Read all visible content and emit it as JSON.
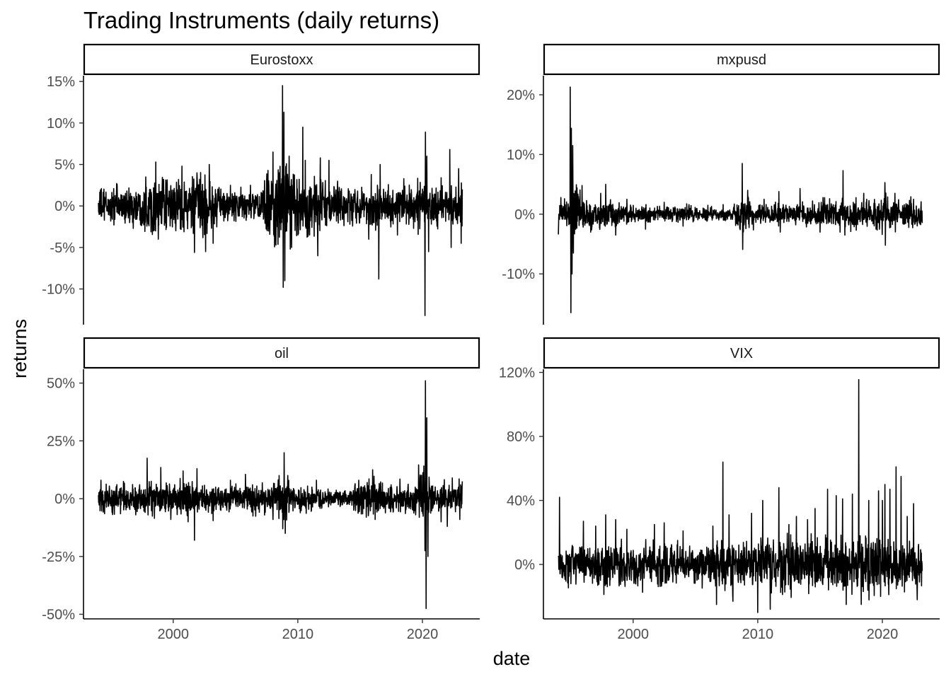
{
  "chart_data": {
    "type": "line",
    "title": "Trading Instruments (daily returns)",
    "xlabel": "date",
    "ylabel": "returns",
    "grid": false,
    "legend": "none",
    "x_range": [
      1992.8,
      2024.6
    ],
    "x_ticks": [
      2000,
      2010,
      2020
    ],
    "x_tick_labels": [
      "2000",
      "2010",
      "2020"
    ],
    "series_range": [
      1994.0,
      2023.2
    ],
    "panels": [
      {
        "name": "Eurostoxx",
        "strip_label": "Eurostoxx",
        "ylim": [
          -14.3,
          15.7
        ],
        "y_ticks": [
          -10,
          -5,
          0,
          5,
          10,
          15
        ],
        "y_tick_labels": [
          "-10%",
          "-5%",
          "0%",
          "5%",
          "10%",
          "15%"
        ],
        "show_x_axis": false,
        "base_volatility": [
          [
            1994,
            1.0
          ],
          [
            1997,
            1.1
          ],
          [
            1998,
            1.5
          ],
          [
            2000,
            1.4
          ],
          [
            2002,
            1.8
          ],
          [
            2003,
            1.5
          ],
          [
            2004,
            0.9
          ],
          [
            2007,
            1.0
          ],
          [
            2008,
            2.2
          ],
          [
            2009,
            2.6
          ],
          [
            2010,
            1.6
          ],
          [
            2011,
            2.1
          ],
          [
            2012,
            1.5
          ],
          [
            2014,
            1.0
          ],
          [
            2016,
            1.3
          ],
          [
            2018,
            1.0
          ],
          [
            2020,
            1.4
          ],
          [
            2021,
            1.1
          ],
          [
            2023,
            1.2
          ]
        ],
        "spikes": [
          [
            1995.5,
            2.6
          ],
          [
            1996.5,
            -2.0
          ],
          [
            1997.8,
            3.5
          ],
          [
            1998.6,
            5.3
          ],
          [
            1998.8,
            -4.0
          ],
          [
            2000.7,
            4.8
          ],
          [
            2001.7,
            -5.6
          ],
          [
            2001.9,
            4.0
          ],
          [
            2002.6,
            5.3
          ],
          [
            2002.9,
            5.0
          ],
          [
            2002.6,
            -5.5
          ],
          [
            2003.2,
            -4.5
          ],
          [
            2004.6,
            2.5
          ],
          [
            2006.2,
            2.5
          ],
          [
            2007.5,
            3.0
          ],
          [
            2008.0,
            6.5
          ],
          [
            2008.5,
            4.0
          ],
          [
            2008.78,
            14.5
          ],
          [
            2008.82,
            -9.8
          ],
          [
            2008.88,
            11.3
          ],
          [
            2008.95,
            -9.0
          ],
          [
            2009.3,
            6.0
          ],
          [
            2009.5,
            -5.0
          ],
          [
            2010.4,
            9.5
          ],
          [
            2010.6,
            5.5
          ],
          [
            2011.6,
            -6.0
          ],
          [
            2011.8,
            5.8
          ],
          [
            2012.5,
            5.5
          ],
          [
            2013.2,
            3.0
          ],
          [
            2015.7,
            -4.0
          ],
          [
            2015.9,
            3.8
          ],
          [
            2016.5,
            -8.8
          ],
          [
            2016.6,
            5.0
          ],
          [
            2018.0,
            -3.5
          ],
          [
            2018.5,
            3.3
          ],
          [
            2020.2,
            -13.2
          ],
          [
            2020.25,
            8.9
          ],
          [
            2020.35,
            6.0
          ],
          [
            2020.5,
            -5.5
          ],
          [
            2021.5,
            3.4
          ],
          [
            2022.2,
            6.8
          ],
          [
            2022.3,
            -5.0
          ],
          [
            2022.9,
            4.5
          ],
          [
            2023.1,
            -4.5
          ]
        ]
      },
      {
        "name": "mxpusd",
        "strip_label": "mxpusd",
        "ylim": [
          -18.5,
          23.2
        ],
        "y_ticks": [
          -10,
          0,
          10,
          20
        ],
        "y_tick_labels": [
          "-10%",
          "0%",
          "10%",
          "20%"
        ],
        "show_x_axis": false,
        "base_volatility": [
          [
            1994,
            0.8
          ],
          [
            1994.9,
            1.0
          ],
          [
            1995.0,
            4.0
          ],
          [
            1995.5,
            2.5
          ],
          [
            1996,
            1.2
          ],
          [
            1998,
            1.2
          ],
          [
            1999,
            0.8
          ],
          [
            2002,
            0.6
          ],
          [
            2008,
            0.6
          ],
          [
            2008.7,
            1.6
          ],
          [
            2009.5,
            1.2
          ],
          [
            2010,
            0.8
          ],
          [
            2014,
            0.9
          ],
          [
            2015,
            1.1
          ],
          [
            2017,
            1.2
          ],
          [
            2019,
            1.0
          ],
          [
            2020.2,
            1.6
          ],
          [
            2021,
            1.2
          ],
          [
            2023,
            1.1
          ]
        ],
        "spikes": [
          [
            1994.0,
            -3.4
          ],
          [
            1994.2,
            2.8
          ],
          [
            1994.5,
            2.6
          ],
          [
            1994.95,
            21.3
          ],
          [
            1995.0,
            -16.5
          ],
          [
            1995.05,
            14.4
          ],
          [
            1995.1,
            -10.0
          ],
          [
            1995.15,
            11.5
          ],
          [
            1995.2,
            -6.5
          ],
          [
            1995.9,
            4.8
          ],
          [
            1996.6,
            -3.0
          ],
          [
            1997.4,
            3.5
          ],
          [
            1997.8,
            5.0
          ],
          [
            1998.6,
            -3.5
          ],
          [
            1999.5,
            2.5
          ],
          [
            2001.0,
            -2.5
          ],
          [
            2002.5,
            2.0
          ],
          [
            2004.0,
            -2.0
          ],
          [
            2006.0,
            1.5
          ],
          [
            2008.75,
            8.5
          ],
          [
            2008.8,
            -5.9
          ],
          [
            2009.2,
            4.0
          ],
          [
            2010.5,
            2.5
          ],
          [
            2011.7,
            3.8
          ],
          [
            2011.8,
            -3.0
          ],
          [
            2013.4,
            4.3
          ],
          [
            2015.0,
            -3.0
          ],
          [
            2016.6,
            -3.0
          ],
          [
            2016.85,
            7.3
          ],
          [
            2017.0,
            -3.5
          ],
          [
            2018.5,
            3.5
          ],
          [
            2019.5,
            -2.5
          ],
          [
            2020.2,
            5.3
          ],
          [
            2020.25,
            -5.2
          ],
          [
            2021.0,
            3.5
          ],
          [
            2022.5,
            2.5
          ]
        ]
      },
      {
        "name": "oil",
        "strip_label": "oil",
        "ylim": [
          -52.0,
          56.0
        ],
        "y_ticks": [
          -50,
          -25,
          0,
          25,
          50
        ],
        "y_tick_labels": [
          "-50%",
          "-25%",
          "0%",
          "25%",
          "50%"
        ],
        "show_x_axis": true,
        "base_volatility": [
          [
            1994,
            2.8
          ],
          [
            1997,
            2.6
          ],
          [
            1998,
            3.4
          ],
          [
            2000,
            3.2
          ],
          [
            2002,
            3.0
          ],
          [
            2003,
            2.7
          ],
          [
            2006,
            2.5
          ],
          [
            2008.5,
            3.5
          ],
          [
            2009,
            4.0
          ],
          [
            2010,
            2.4
          ],
          [
            2012,
            2.0
          ],
          [
            2014,
            1.5
          ],
          [
            2014.8,
            3.5
          ],
          [
            2016,
            4.0
          ],
          [
            2017,
            3.0
          ],
          [
            2019,
            2.8
          ],
          [
            2020.2,
            6.0
          ],
          [
            2020.5,
            4.5
          ],
          [
            2021,
            3.0
          ],
          [
            2023,
            3.0
          ]
        ],
        "spikes": [
          [
            1994.2,
            8.0
          ],
          [
            1994.5,
            -6.5
          ],
          [
            1996.0,
            7.5
          ],
          [
            1997.0,
            -7.0
          ],
          [
            1997.9,
            17.5
          ],
          [
            1998.5,
            -8.5
          ],
          [
            1999.0,
            13.5
          ],
          [
            1999.8,
            -9.0
          ],
          [
            2000.8,
            12.0
          ],
          [
            2001.2,
            -10.0
          ],
          [
            2001.7,
            -18.0
          ],
          [
            2001.9,
            13.0
          ],
          [
            2003.2,
            -9.5
          ],
          [
            2004.6,
            8.0
          ],
          [
            2005.8,
            10.5
          ],
          [
            2006.4,
            -7.5
          ],
          [
            2008.0,
            -9.0
          ],
          [
            2008.5,
            10.0
          ],
          [
            2008.8,
            -13.0
          ],
          [
            2008.9,
            19.9
          ],
          [
            2009.0,
            -15.0
          ],
          [
            2009.2,
            10.0
          ],
          [
            2011.5,
            8.0
          ],
          [
            2014.9,
            8.0
          ],
          [
            2015.5,
            -8.0
          ],
          [
            2016.0,
            12.5
          ],
          [
            2016.2,
            -9.0
          ],
          [
            2018.2,
            8.5
          ],
          [
            2019.7,
            14.6
          ],
          [
            2020.2,
            -22.5
          ],
          [
            2020.25,
            51.0
          ],
          [
            2020.3,
            -47.5
          ],
          [
            2020.35,
            35.0
          ],
          [
            2020.45,
            -25.0
          ],
          [
            2021.5,
            -10.0
          ],
          [
            2022.0,
            -12.0
          ],
          [
            2022.4,
            9.0
          ],
          [
            2023.0,
            -9.0
          ]
        ]
      },
      {
        "name": "VIX",
        "strip_label": "VIX",
        "ylim": [
          -34.0,
          122.0
        ],
        "y_ticks": [
          0,
          40,
          80,
          120
        ],
        "y_tick_labels": [
          "0%",
          "40%",
          "80%",
          "120%"
        ],
        "show_x_axis": true,
        "base_volatility": [
          [
            1994,
            5.5
          ],
          [
            1997,
            6.5
          ],
          [
            2000,
            6.5
          ],
          [
            2003,
            6.0
          ],
          [
            2005,
            5.5
          ],
          [
            2007,
            7.0
          ],
          [
            2009,
            7.0
          ],
          [
            2012,
            7.5
          ],
          [
            2014,
            8.0
          ],
          [
            2017,
            8.5
          ],
          [
            2019,
            8.5
          ],
          [
            2021,
            8.0
          ],
          [
            2023,
            7.5
          ]
        ],
        "spikes": [
          [
            1994.1,
            42.0
          ],
          [
            1995.0,
            -12.0
          ],
          [
            1996.0,
            27.0
          ],
          [
            1997.0,
            24.0
          ],
          [
            1997.8,
            31.0
          ],
          [
            1998.6,
            28.0
          ],
          [
            1999.5,
            22.0
          ],
          [
            2001.7,
            25.0
          ],
          [
            2002.5,
            26.0
          ],
          [
            2004.0,
            21.0
          ],
          [
            2006.4,
            24.0
          ],
          [
            2006.7,
            -25.0
          ],
          [
            2007.2,
            64.0
          ],
          [
            2007.7,
            31.0
          ],
          [
            2008.0,
            -23.0
          ],
          [
            2009.5,
            32.0
          ],
          [
            2010.0,
            -30.0
          ],
          [
            2010.4,
            40.0
          ],
          [
            2011.0,
            -28.0
          ],
          [
            2011.7,
            48.0
          ],
          [
            2012.5,
            25.0
          ],
          [
            2013.1,
            30.0
          ],
          [
            2014.0,
            28.0
          ],
          [
            2014.6,
            35.0
          ],
          [
            2015.6,
            47.0
          ],
          [
            2016.3,
            43.0
          ],
          [
            2016.8,
            41.0
          ],
          [
            2017.1,
            -25.0
          ],
          [
            2017.6,
            44.0
          ],
          [
            2018.1,
            115.5
          ],
          [
            2018.3,
            -25.0
          ],
          [
            2018.9,
            40.0
          ],
          [
            2019.7,
            46.0
          ],
          [
            2020.0,
            40.0
          ],
          [
            2020.2,
            50.0
          ],
          [
            2020.6,
            47.0
          ],
          [
            2021.1,
            61.0
          ],
          [
            2021.5,
            55.0
          ],
          [
            2022.0,
            30.0
          ],
          [
            2022.5,
            38.0
          ],
          [
            2022.8,
            -22.0
          ]
        ]
      }
    ]
  }
}
